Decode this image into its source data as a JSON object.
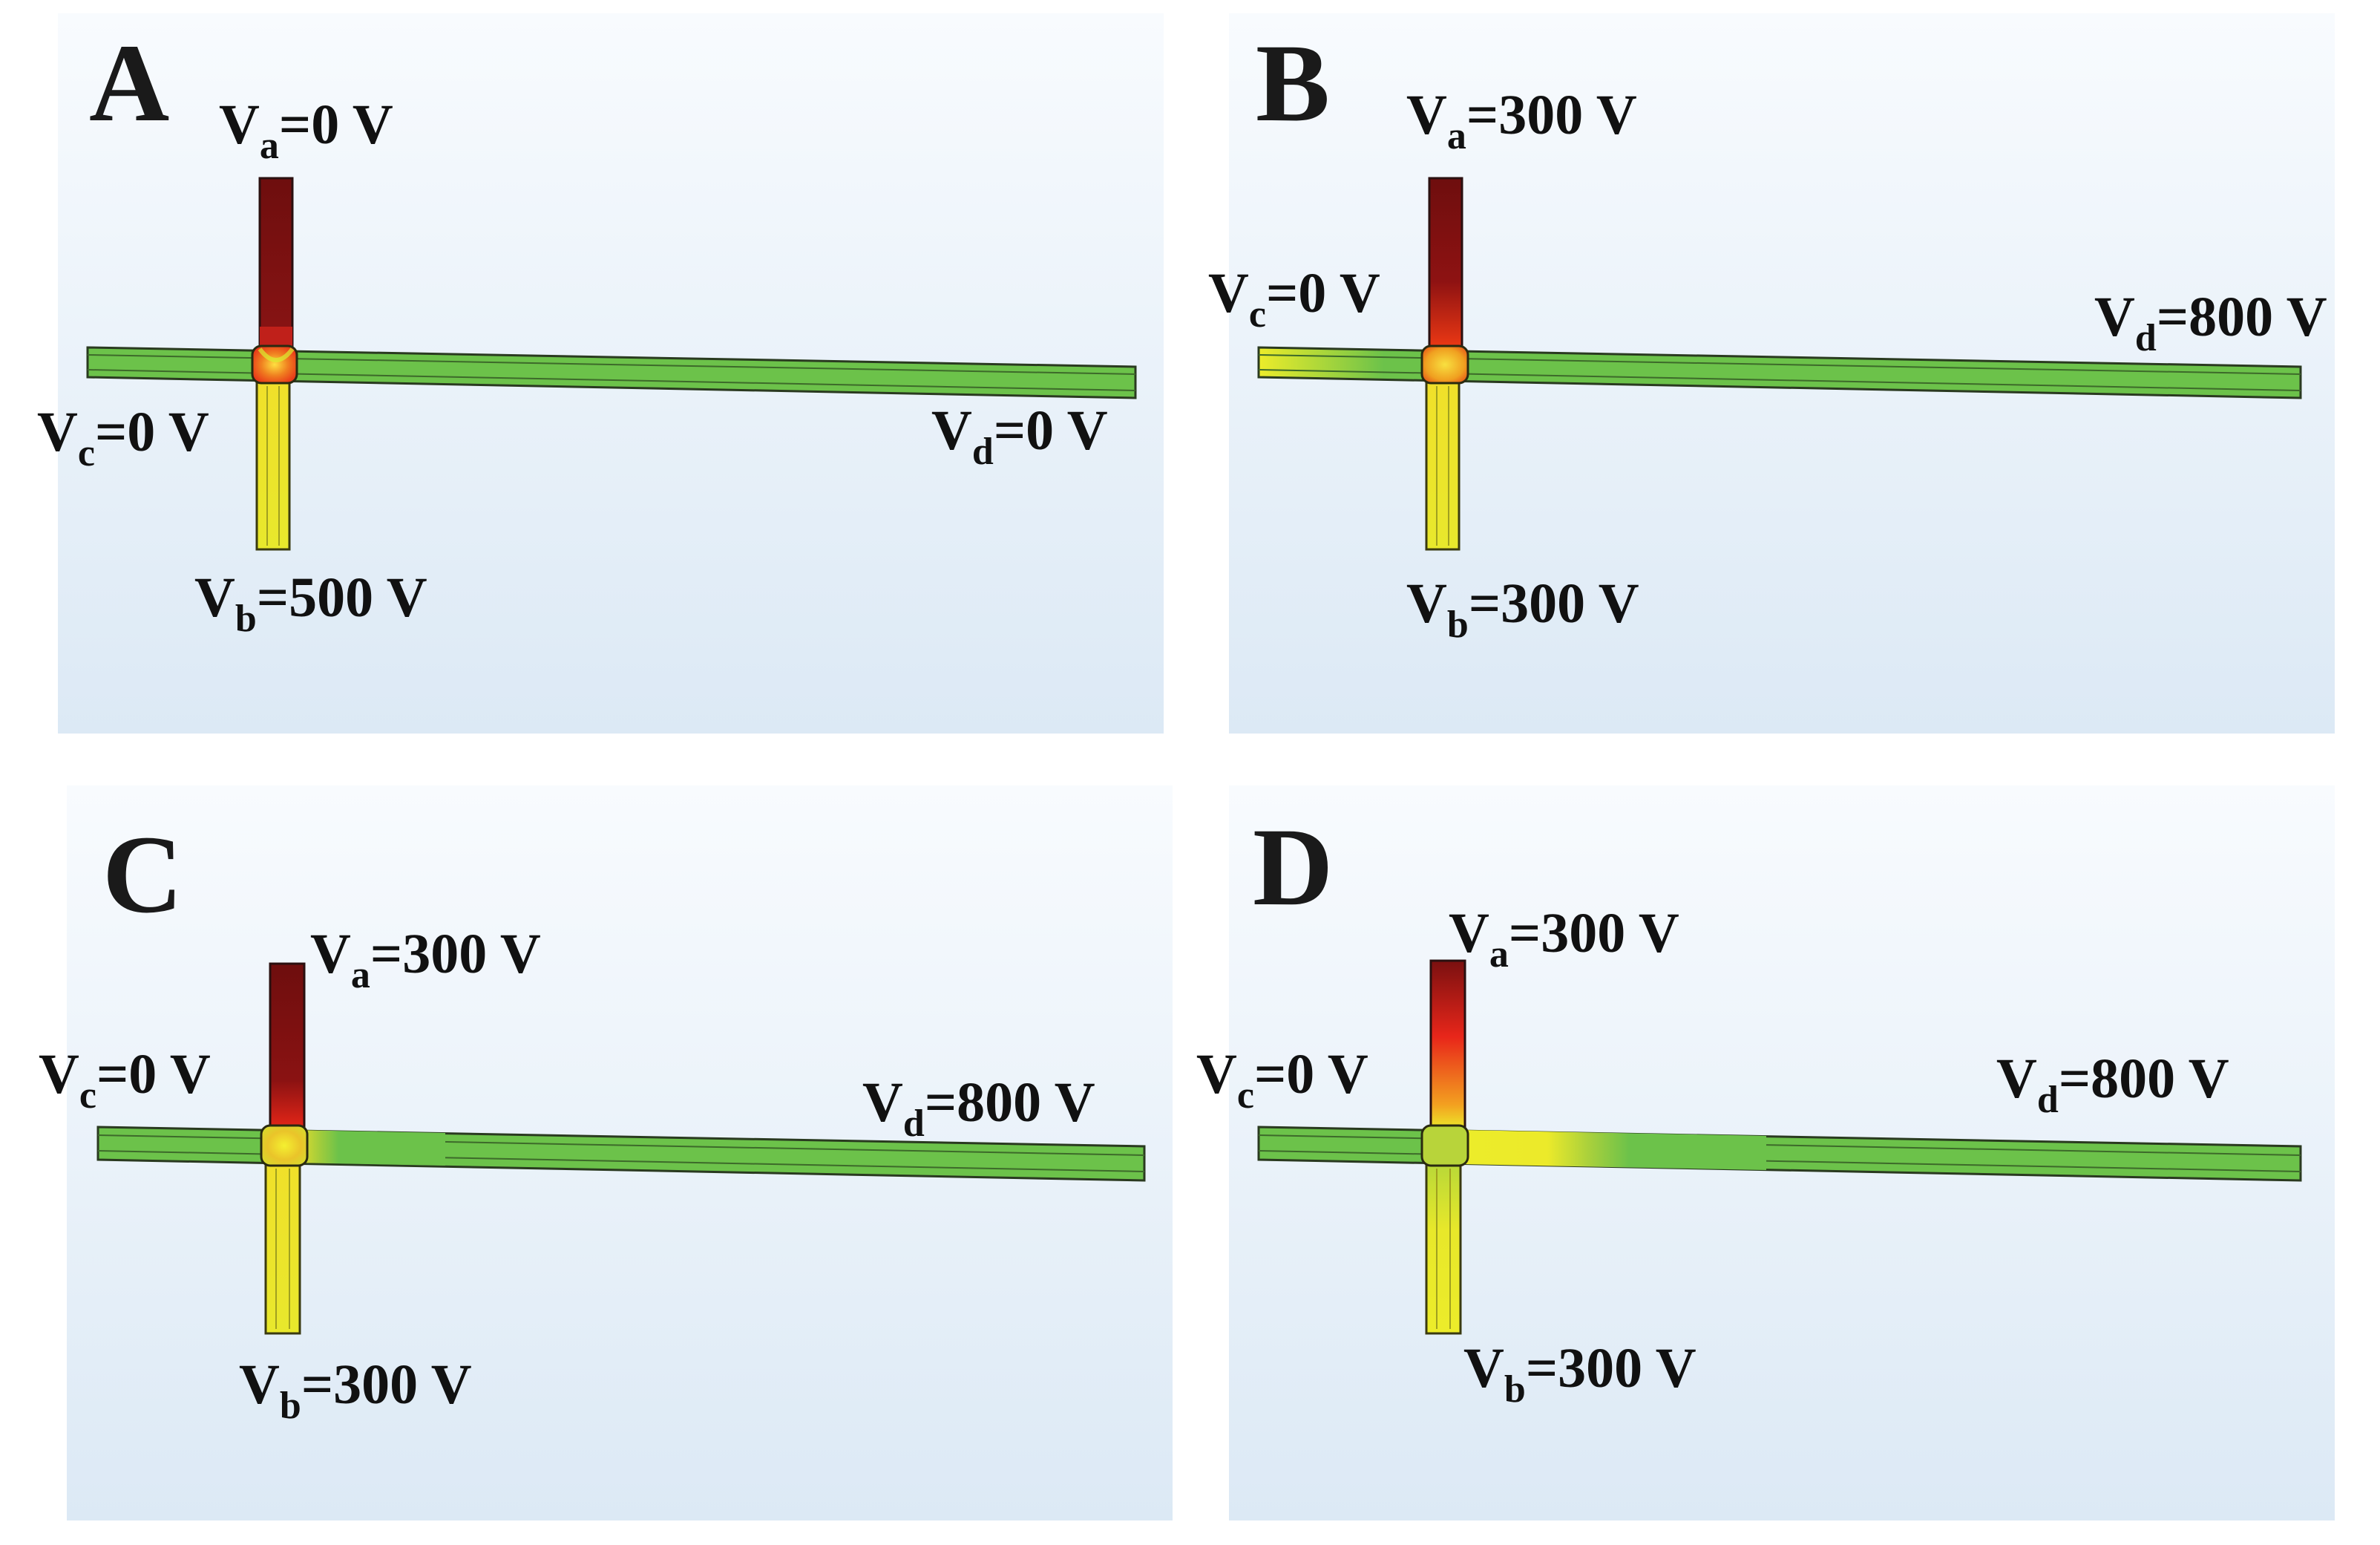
{
  "figure": {
    "panels": [
      {
        "label": "A",
        "va": {
          "sym": "V",
          "sub": "a",
          "val": "=0  V"
        },
        "vb": {
          "sym": "V",
          "sub": "b",
          "val": "=500 V"
        },
        "vc": {
          "sym": "V",
          "sub": "c",
          "val": "=0  V"
        },
        "vd": {
          "sym": "V",
          "sub": "d",
          "val": "=0  V"
        }
      },
      {
        "label": "B",
        "va": {
          "sym": "V",
          "sub": "a",
          "val": "=300  V"
        },
        "vb": {
          "sym": "V",
          "sub": "b",
          "val": "=300 V"
        },
        "vc": {
          "sym": "V",
          "sub": "c",
          "val": "=0  V"
        },
        "vd": {
          "sym": "V",
          "sub": "d",
          "val": "=800  V"
        }
      },
      {
        "label": "C",
        "va": {
          "sym": "V",
          "sub": "a",
          "val": "=300  V"
        },
        "vb": {
          "sym": "V",
          "sub": "b",
          "val": "=300 V"
        },
        "vc": {
          "sym": "V",
          "sub": "c",
          "val": "=0  V"
        },
        "vd": {
          "sym": "V",
          "sub": "d",
          "val": "=800  V"
        }
      },
      {
        "label": "D",
        "va": {
          "sym": "V",
          "sub": "a",
          "val": "=300  V"
        },
        "vb": {
          "sym": "V",
          "sub": "b",
          "val": "=300 V"
        },
        "vc": {
          "sym": "V",
          "sub": "c",
          "val": "=0  V"
        },
        "vd": {
          "sym": "V",
          "sub": "d",
          "val": "=800  V"
        }
      }
    ],
    "colors": {
      "bg_top": "#f7fafd",
      "bg_bottom": "#ddeaf6",
      "channel_green": "#6cc24a",
      "channel_yellow": "#ecec2a",
      "channel_dark_red": "#7a1010",
      "channel_red": "#e8261a",
      "channel_outline": "#2a3a20"
    }
  }
}
